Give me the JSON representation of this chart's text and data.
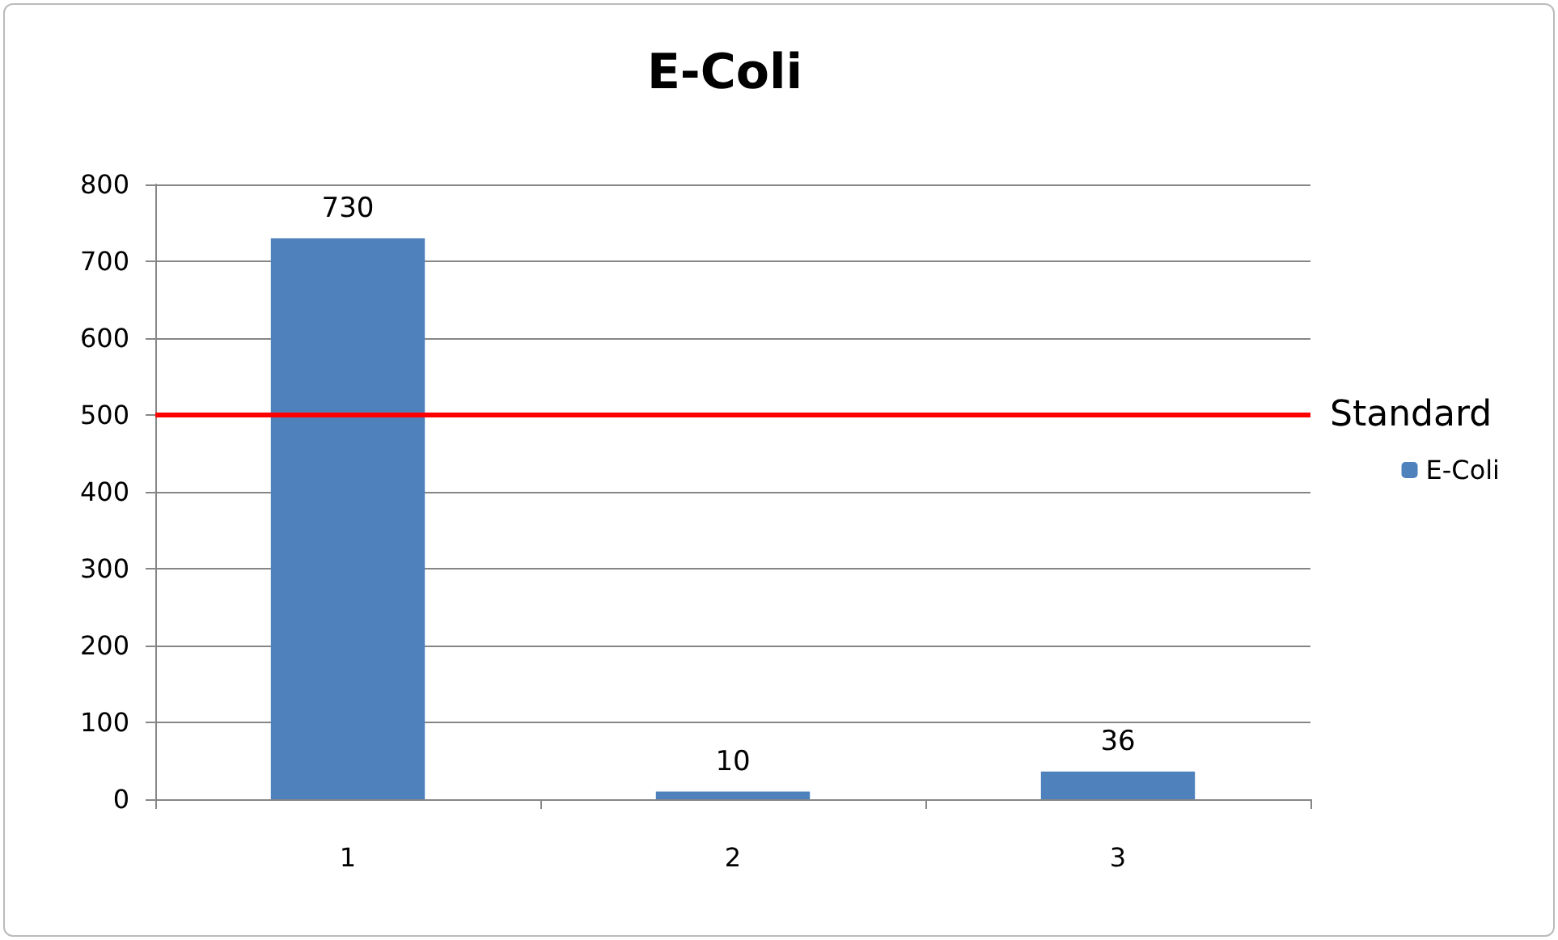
{
  "chart_data": {
    "type": "bar",
    "title": "E-Coli",
    "categories": [
      "1",
      "2",
      "3"
    ],
    "series": [
      {
        "name": "E-Coli",
        "color": "#4f81bd",
        "values": [
          730,
          10,
          36
        ]
      }
    ],
    "ylim": [
      0,
      800
    ],
    "yticks": [
      0,
      100,
      200,
      300,
      400,
      500,
      600,
      700,
      800
    ],
    "grid": "y",
    "legend": "right",
    "data_labels": true,
    "ref_lines": [
      {
        "axis": "y",
        "value": 500,
        "label": "Standard",
        "color": "#ff0000"
      }
    ]
  }
}
